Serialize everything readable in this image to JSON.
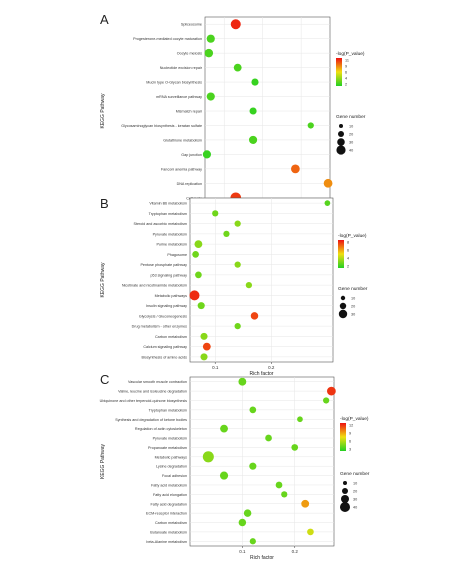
{
  "chart_data": [
    {
      "type": "scatter",
      "panel_letter": "A",
      "ylabel": "KEGG Pathway",
      "xlabel": "Rich factor",
      "xlim": [
        0.3,
        0.95
      ],
      "xticks": [
        0.4,
        0.6,
        0.8
      ],
      "tick_labels": [
        "0.4",
        "0.6",
        "0.8"
      ],
      "legend_color_title": "-log(P_value)",
      "legend_color_ticks": [
        "11",
        "9",
        "6",
        "4",
        "2"
      ],
      "legend_color_range": [
        2,
        12
      ],
      "legend_size_title": "Gene number",
      "legend_size_ticks": [
        "10",
        "20",
        "30",
        "40"
      ],
      "grid": true,
      "legend": "right",
      "points": [
        {
          "pathway": "Spliceosome",
          "x": 0.46,
          "logp": 11.5,
          "genes": 30
        },
        {
          "pathway": "Progesterone-mediated oocyte maturation",
          "x": 0.33,
          "logp": 3,
          "genes": 16
        },
        {
          "pathway": "Oocyte meiosis",
          "x": 0.32,
          "logp": 3,
          "genes": 18
        },
        {
          "pathway": "Nucleotide excision repair",
          "x": 0.47,
          "logp": 3,
          "genes": 14
        },
        {
          "pathway": "Mucin type O-Glycan biosynthesis",
          "x": 0.56,
          "logp": 2.5,
          "genes": 10
        },
        {
          "pathway": "mRNA surveillance pathway",
          "x": 0.33,
          "logp": 3,
          "genes": 16
        },
        {
          "pathway": "Mismatch repair",
          "x": 0.55,
          "logp": 2.5,
          "genes": 10
        },
        {
          "pathway": "Glycosaminoglycan biosynthesis - keratan sulfate",
          "x": 0.85,
          "logp": 3,
          "genes": 6
        },
        {
          "pathway": "Glutathione metabolism",
          "x": 0.55,
          "logp": 3,
          "genes": 16
        },
        {
          "pathway": "Gap junction",
          "x": 0.31,
          "logp": 2.5,
          "genes": 16
        },
        {
          "pathway": "Fanconi anemia pathway",
          "x": 0.77,
          "logp": 10,
          "genes": 20
        },
        {
          "pathway": "DNA replication",
          "x": 0.94,
          "logp": 9,
          "genes": 20
        },
        {
          "pathway": "Cell cycle",
          "x": 0.46,
          "logp": 11,
          "genes": 36
        }
      ]
    },
    {
      "type": "scatter",
      "panel_letter": "B",
      "ylabel": "KEGG Pathway",
      "xlabel": "Rich factor",
      "xlim": [
        0.055,
        0.31
      ],
      "xticks": [
        0.1,
        0.2
      ],
      "tick_labels": [
        "0.1",
        "0.2"
      ],
      "legend_color_title": "-log(P_value)",
      "legend_color_ticks": [
        "8",
        "6",
        "4",
        "2"
      ],
      "legend_color_range": [
        1,
        9
      ],
      "legend_size_title": "Gene number",
      "legend_size_ticks": [
        "10",
        "20",
        "30"
      ],
      "grid": true,
      "legend": "right",
      "points": [
        {
          "pathway": "Vitamin B6 metabolism",
          "x": 0.3,
          "logp": 2,
          "genes": 4
        },
        {
          "pathway": "Tryptophan metabolism",
          "x": 0.1,
          "logp": 2.5,
          "genes": 6
        },
        {
          "pathway": "Steroid and ascorbic metabolism",
          "x": 0.14,
          "logp": 3,
          "genes": 6
        },
        {
          "pathway": "Pyruvate metabolism",
          "x": 0.12,
          "logp": 2.5,
          "genes": 6
        },
        {
          "pathway": "Purine metabolism",
          "x": 0.07,
          "logp": 3,
          "genes": 14
        },
        {
          "pathway": "Phagosome",
          "x": 0.065,
          "logp": 2.5,
          "genes": 8
        },
        {
          "pathway": "Pentose phosphate pathway",
          "x": 0.14,
          "logp": 3,
          "genes": 6
        },
        {
          "pathway": "p53 signaling pathway",
          "x": 0.07,
          "logp": 2.5,
          "genes": 8
        },
        {
          "pathway": "Nicotinate and nicotinamide metabolism",
          "x": 0.16,
          "logp": 3,
          "genes": 6
        },
        {
          "pathway": "Metabolic pathways",
          "x": 0.063,
          "logp": 8.5,
          "genes": 30
        },
        {
          "pathway": "Insulin signaling pathway",
          "x": 0.075,
          "logp": 2.5,
          "genes": 10
        },
        {
          "pathway": "Glycolysis / Gluconeogenesis",
          "x": 0.17,
          "logp": 8,
          "genes": 12
        },
        {
          "pathway": "Drug metabolism - other enzymes",
          "x": 0.14,
          "logp": 2.5,
          "genes": 6
        },
        {
          "pathway": "Carbon metabolism",
          "x": 0.08,
          "logp": 3,
          "genes": 10
        },
        {
          "pathway": "Calcium signaling pathway",
          "x": 0.085,
          "logp": 8,
          "genes": 14
        },
        {
          "pathway": "Biosynthesis of amino acids",
          "x": 0.08,
          "logp": 3,
          "genes": 10
        }
      ]
    },
    {
      "type": "scatter",
      "panel_letter": "C",
      "ylabel": "KEGG Pathway",
      "xlabel": "Rich factor",
      "xlim": [
        0.0,
        0.275
      ],
      "xticks": [
        0.1,
        0.2
      ],
      "tick_labels": [
        "0.1",
        "0.2"
      ],
      "legend_color_title": "-log(P_value)",
      "legend_color_ticks": [
        "12",
        "9",
        "6",
        "3"
      ],
      "legend_color_range": [
        1,
        13
      ],
      "legend_size_title": "Gene number",
      "legend_size_ticks": [
        "10",
        "20",
        "30",
        "40"
      ],
      "grid": true,
      "legend": "right",
      "points": [
        {
          "pathway": "Vascular smooth muscle contraction",
          "x": 0.1,
          "logp": 3,
          "genes": 14
        },
        {
          "pathway": "Valine, leucine and isoleucine degradation",
          "x": 0.27,
          "logp": 12,
          "genes": 20
        },
        {
          "pathway": "Ubiquinone and other terpenoid-quinone biosynthesis",
          "x": 0.26,
          "logp": 3,
          "genes": 6
        },
        {
          "pathway": "Tryptophan metabolism",
          "x": 0.12,
          "logp": 3,
          "genes": 8
        },
        {
          "pathway": "Synthesis and degradation of ketone bodies",
          "x": 0.21,
          "logp": 3,
          "genes": 4
        },
        {
          "pathway": "Regulation of actin cytoskeleton",
          "x": 0.065,
          "logp": 3,
          "genes": 14
        },
        {
          "pathway": "Pyruvate metabolism",
          "x": 0.15,
          "logp": 3,
          "genes": 8
        },
        {
          "pathway": "Propanoate metabolism",
          "x": 0.2,
          "logp": 3,
          "genes": 8
        },
        {
          "pathway": "Metabolic pathways",
          "x": 0.035,
          "logp": 4,
          "genes": 40
        },
        {
          "pathway": "Lysine degradation",
          "x": 0.12,
          "logp": 3,
          "genes": 10
        },
        {
          "pathway": "Focal adhesion",
          "x": 0.065,
          "logp": 3,
          "genes": 16
        },
        {
          "pathway": "Fatty acid metabolism",
          "x": 0.17,
          "logp": 3,
          "genes": 8
        },
        {
          "pathway": "Fatty acid elongation",
          "x": 0.18,
          "logp": 3,
          "genes": 6
        },
        {
          "pathway": "Fatty acid degradation",
          "x": 0.22,
          "logp": 9,
          "genes": 14
        },
        {
          "pathway": "ECM-receptor interaction",
          "x": 0.11,
          "logp": 3,
          "genes": 12
        },
        {
          "pathway": "Carbon metabolism",
          "x": 0.1,
          "logp": 3,
          "genes": 12
        },
        {
          "pathway": "Butanoate metabolism",
          "x": 0.23,
          "logp": 6,
          "genes": 8
        },
        {
          "pathway": "beta-Alanine metabolism",
          "x": 0.12,
          "logp": 3,
          "genes": 6
        }
      ]
    }
  ],
  "colors": {
    "low": "#22d022",
    "mid": "#f0e010",
    "high": "#ee1111",
    "grid": "#e6e6e6",
    "frame": "#555555"
  }
}
